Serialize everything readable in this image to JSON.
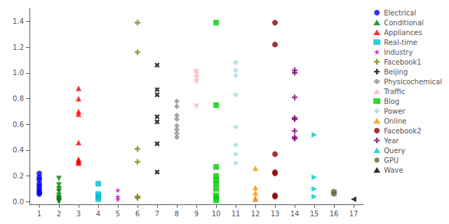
{
  "chart_data": {
    "type": "scatter",
    "xlim": [
      0.5,
      17.5
    ],
    "xticks": [
      1,
      2,
      3,
      4,
      5,
      6,
      7,
      8,
      9,
      10,
      11,
      12,
      13,
      14,
      15,
      16,
      17
    ],
    "ylim": [
      -0.02,
      1.5
    ],
    "yticks": [
      {
        "value": 0,
        "label": "0.0"
      },
      {
        "value": 0.2,
        "label": "0.2"
      },
      {
        "value": 0.4,
        "label": "0.4"
      },
      {
        "value": 0.6,
        "label": "0.6"
      },
      {
        "value": 0.8,
        "label": "0.8"
      },
      {
        "value": 1,
        "label": "1.0"
      },
      {
        "value": 1.2,
        "label": "1.2"
      },
      {
        "value": 1.4,
        "label": "1.4"
      }
    ],
    "grid": false,
    "legend": "right",
    "series": [
      {
        "name": "Electrical",
        "color": "#0000ff",
        "marker": "circle",
        "x": [
          1,
          1,
          1,
          1,
          1,
          1,
          1,
          1,
          1
        ],
        "values": [
          0.22,
          0.19,
          0.17,
          0.14,
          0.12,
          0.1,
          0.08,
          0.07,
          0.06
        ]
      },
      {
        "name": "Conditional",
        "color": "#008000",
        "marker": "triangle_down",
        "x": [
          2,
          2,
          2,
          2,
          2,
          2,
          2,
          2,
          2
        ],
        "values": [
          0.18,
          0.13,
          0.1,
          0.08,
          0.05,
          0.03,
          0.02,
          0.01,
          0.0
        ]
      },
      {
        "name": "Appliances",
        "color": "#ff0000",
        "marker": "triangle",
        "x": [
          3,
          3,
          3,
          3,
          3,
          3,
          3,
          3,
          3
        ],
        "values": [
          0.88,
          0.8,
          0.7,
          0.68,
          0.46,
          0.33,
          0.32,
          0.31,
          0.3
        ]
      },
      {
        "name": "Real-time",
        "color": "#00bcd4",
        "marker": "square",
        "x": [
          4,
          4,
          4,
          4
        ],
        "values": [
          0.14,
          0.06,
          0.04,
          0.02
        ]
      },
      {
        "name": "Industry",
        "color": "#cc00cc",
        "marker": "star",
        "x": [
          5,
          5,
          5
        ],
        "values": [
          0.09,
          0.04,
          0.02
        ]
      },
      {
        "name": "Facebook1",
        "color": "#808000",
        "marker": "plus",
        "x": [
          6,
          6,
          6,
          6,
          6,
          6
        ],
        "values": [
          1.39,
          1.16,
          0.41,
          0.31,
          0.04,
          0.03
        ]
      },
      {
        "name": "Beijing",
        "color": "#000000",
        "marker": "x",
        "x": [
          7,
          7,
          7,
          7,
          7,
          7,
          7
        ],
        "values": [
          1.06,
          0.87,
          0.83,
          0.66,
          0.62,
          0.45,
          0.23
        ]
      },
      {
        "name": "Physicochemical",
        "color": "#909090",
        "marker": "diamond",
        "x": [
          8,
          8,
          8,
          8,
          8,
          8,
          8,
          8
        ],
        "values": [
          0.78,
          0.74,
          0.67,
          0.64,
          0.59,
          0.56,
          0.53,
          0.5
        ]
      },
      {
        "name": "Traffic",
        "color": "#ffb6c1",
        "marker": "triangle_down",
        "x": [
          9,
          9,
          9,
          9,
          9
        ],
        "values": [
          1.01,
          0.99,
          0.96,
          0.93,
          0.74
        ]
      },
      {
        "name": "Blog",
        "color": "#00cc00",
        "marker": "square",
        "x": [
          10,
          10,
          10,
          10,
          10,
          10,
          10,
          10,
          10,
          10
        ],
        "values": [
          1.39,
          0.75,
          0.27,
          0.2,
          0.17,
          0.14,
          0.1,
          0.05,
          0.03,
          0.01
        ]
      },
      {
        "name": "Power",
        "color": "#add8e6",
        "marker": "diamond",
        "x": [
          11,
          11,
          11,
          11,
          11,
          11,
          11,
          11
        ],
        "values": [
          1.08,
          1.02,
          0.98,
          0.83,
          0.58,
          0.44,
          0.37,
          0.3
        ]
      },
      {
        "name": "Online",
        "color": "#ff8c00",
        "marker": "triangle",
        "x": [
          12,
          12,
          12,
          12,
          12
        ],
        "values": [
          0.26,
          0.11,
          0.07,
          0.03,
          0.02
        ]
      },
      {
        "name": "Facebook2",
        "color": "#8b0000",
        "marker": "circle",
        "x": [
          13,
          13,
          13,
          13,
          13,
          13,
          13
        ],
        "values": [
          1.39,
          1.22,
          0.37,
          0.23,
          0.22,
          0.05,
          0.04
        ]
      },
      {
        "name": "Year",
        "color": "#800080",
        "marker": "plus",
        "x": [
          14,
          14,
          14,
          14,
          14,
          14,
          14,
          14
        ],
        "values": [
          1.02,
          1.0,
          0.81,
          0.65,
          0.64,
          0.55,
          0.5,
          0.49
        ]
      },
      {
        "name": "Query",
        "color": "#00cccc",
        "marker": "triangle_right",
        "x": [
          15,
          15,
          15,
          15
        ],
        "values": [
          0.52,
          0.19,
          0.1,
          0.04
        ]
      },
      {
        "name": "GPU",
        "color": "#556b2f",
        "marker": "hexagon",
        "x": [
          16,
          16
        ],
        "values": [
          0.08,
          0.06
        ]
      },
      {
        "name": "Wave",
        "color": "#000000",
        "marker": "triangle_left",
        "x": [
          17
        ],
        "values": [
          0.02
        ]
      }
    ]
  }
}
